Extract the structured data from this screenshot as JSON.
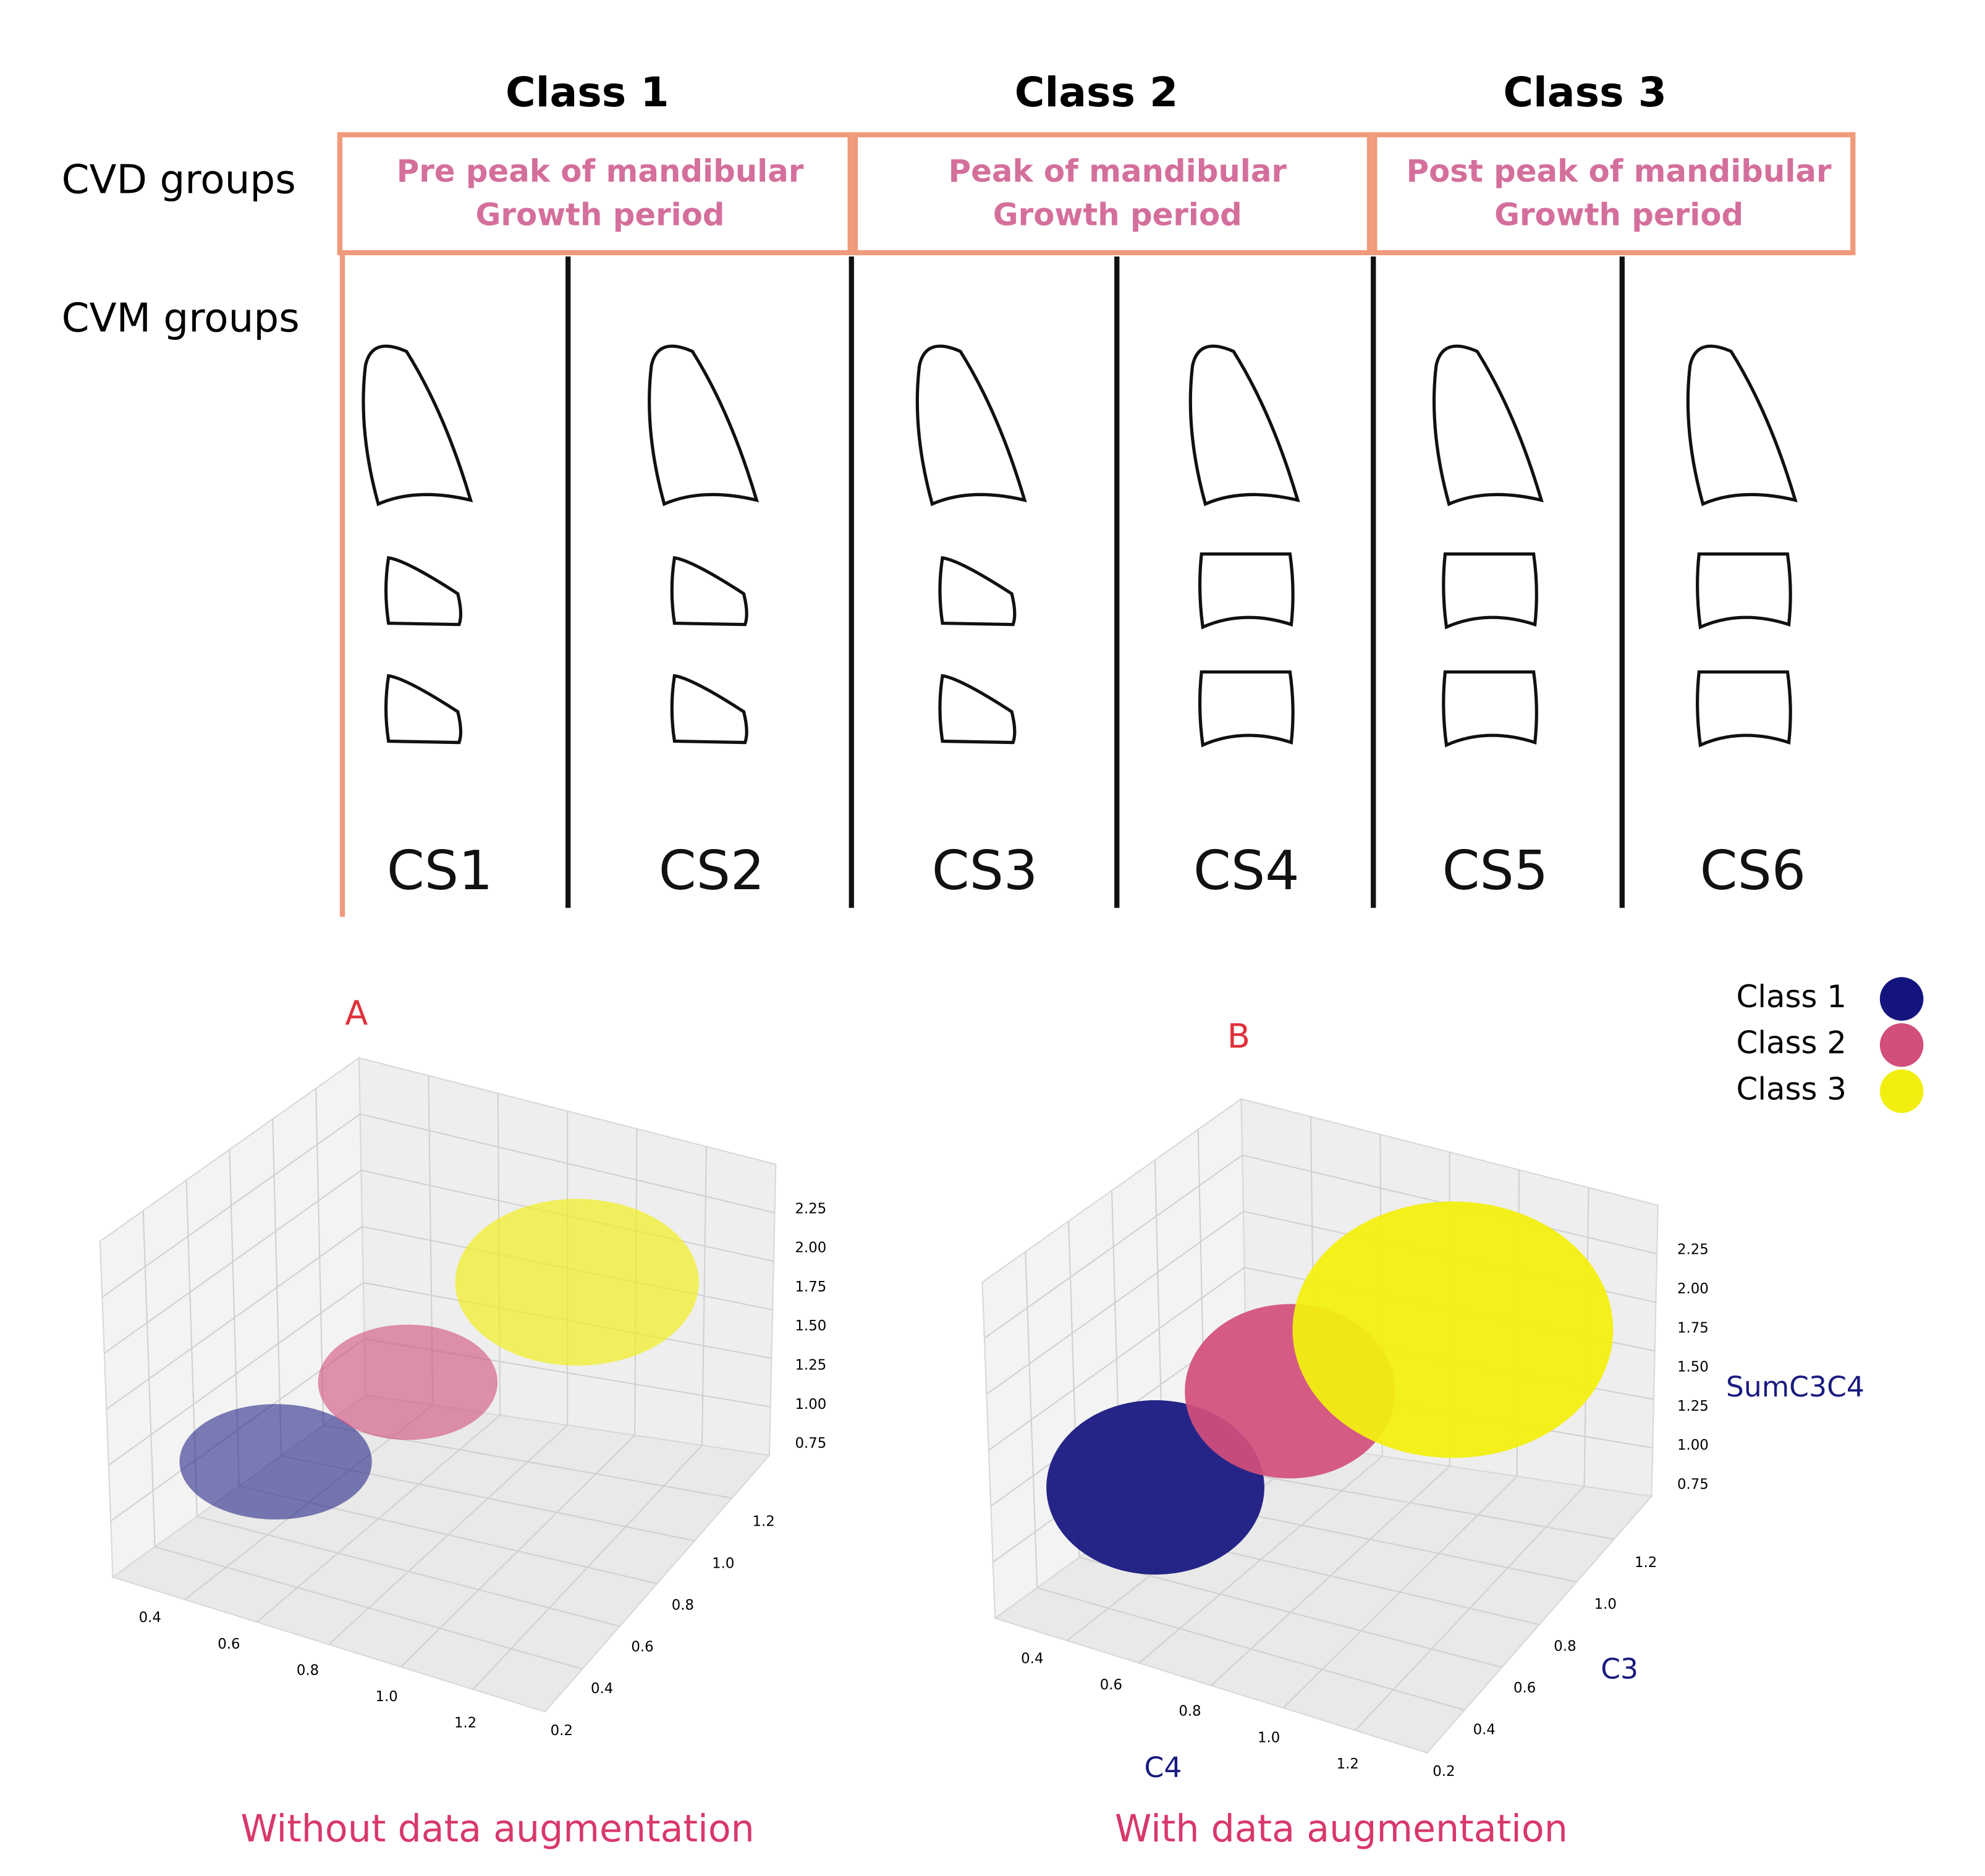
{
  "header": {
    "classes": [
      "Class 1",
      "Class 2",
      "Class 3"
    ],
    "row_labels": [
      "CVD groups",
      "CVM groups"
    ]
  },
  "cvd_groups": [
    {
      "line1": "Pre peak of mandibular",
      "line2": "Growth period"
    },
    {
      "line1": "Peak of mandibular",
      "line2": "Growth period"
    },
    {
      "line1": "Post peak of mandibular",
      "line2": "Growth period"
    }
  ],
  "cvm_stages": [
    "CS1",
    "CS2",
    "CS3",
    "CS4",
    "CS5",
    "CS6"
  ],
  "panels": [
    {
      "letter": "A",
      "caption": "Without data augmentation",
      "x_ticks": [
        "0.4",
        "0.6",
        "0.8",
        "1.0",
        "1.2"
      ],
      "y_ticks": [
        "0.2",
        "0.4",
        "0.6",
        "0.8",
        "1.0",
        "1.2"
      ],
      "z_ticks": [
        "0.75",
        "1.00",
        "1.25",
        "1.50",
        "1.75",
        "2.00",
        "2.25"
      ]
    },
    {
      "letter": "B",
      "caption": "With data augmentation",
      "x_ticks": [
        "0.4",
        "0.6",
        "0.8",
        "1.0",
        "1.2"
      ],
      "y_ticks": [
        "0.2",
        "0.4",
        "0.6",
        "0.8",
        "1.0",
        "1.2"
      ],
      "z_ticks": [
        "0.75",
        "1.00",
        "1.25",
        "1.50",
        "1.75",
        "2.00",
        "2.25"
      ],
      "x_label": "C4",
      "y_label": "C3",
      "z_label": "SumC3C4"
    }
  ],
  "legend": [
    {
      "label": "Class 1",
      "color": "#14147f"
    },
    {
      "label": "Class 2",
      "color": "#d24e7c"
    },
    {
      "label": "Class 3",
      "color": "#f2ef10"
    }
  ]
}
